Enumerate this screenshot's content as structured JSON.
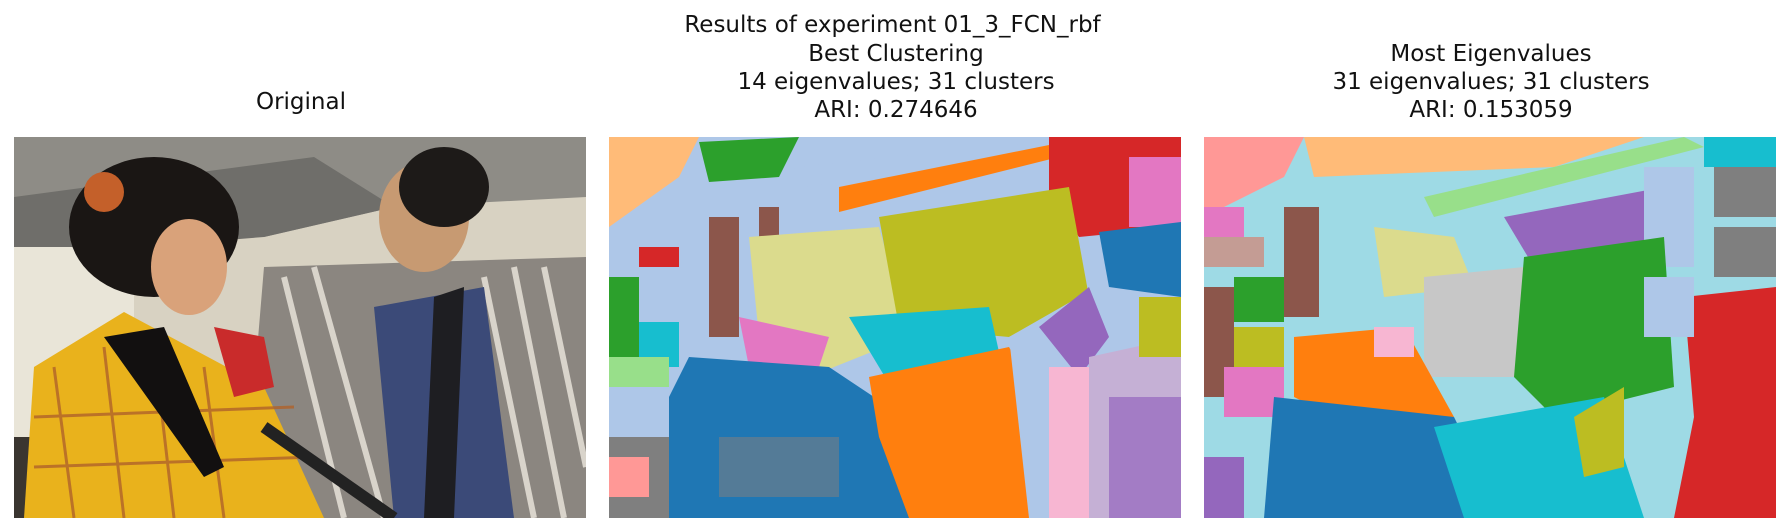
{
  "figure": {
    "suptitle": "Results of experiment 01_3_FCN_rbf"
  },
  "panels": [
    {
      "title_lines": [
        "Original"
      ]
    },
    {
      "title_lines": [
        "Best Clustering",
        "14 eigenvalues; 31 clusters",
        "ARI: 0.274646"
      ]
    },
    {
      "title_lines": [
        "Most Eigenvalues",
        "31 eigenvalues; 31 clusters",
        "ARI: 0.153059"
      ]
    }
  ],
  "cluster_palette": [
    "#1f77b4",
    "#aec7e8",
    "#ff7f0e",
    "#ffbb78",
    "#2ca02c",
    "#98df8a",
    "#d62728",
    "#ff9896",
    "#9467bd",
    "#c5b0d5",
    "#8c564b",
    "#c49c94",
    "#e377c2",
    "#f7b6d2",
    "#7f7f7f",
    "#c7c7c7",
    "#bcbd22",
    "#dbdb8d",
    "#17becf",
    "#9edae5"
  ]
}
